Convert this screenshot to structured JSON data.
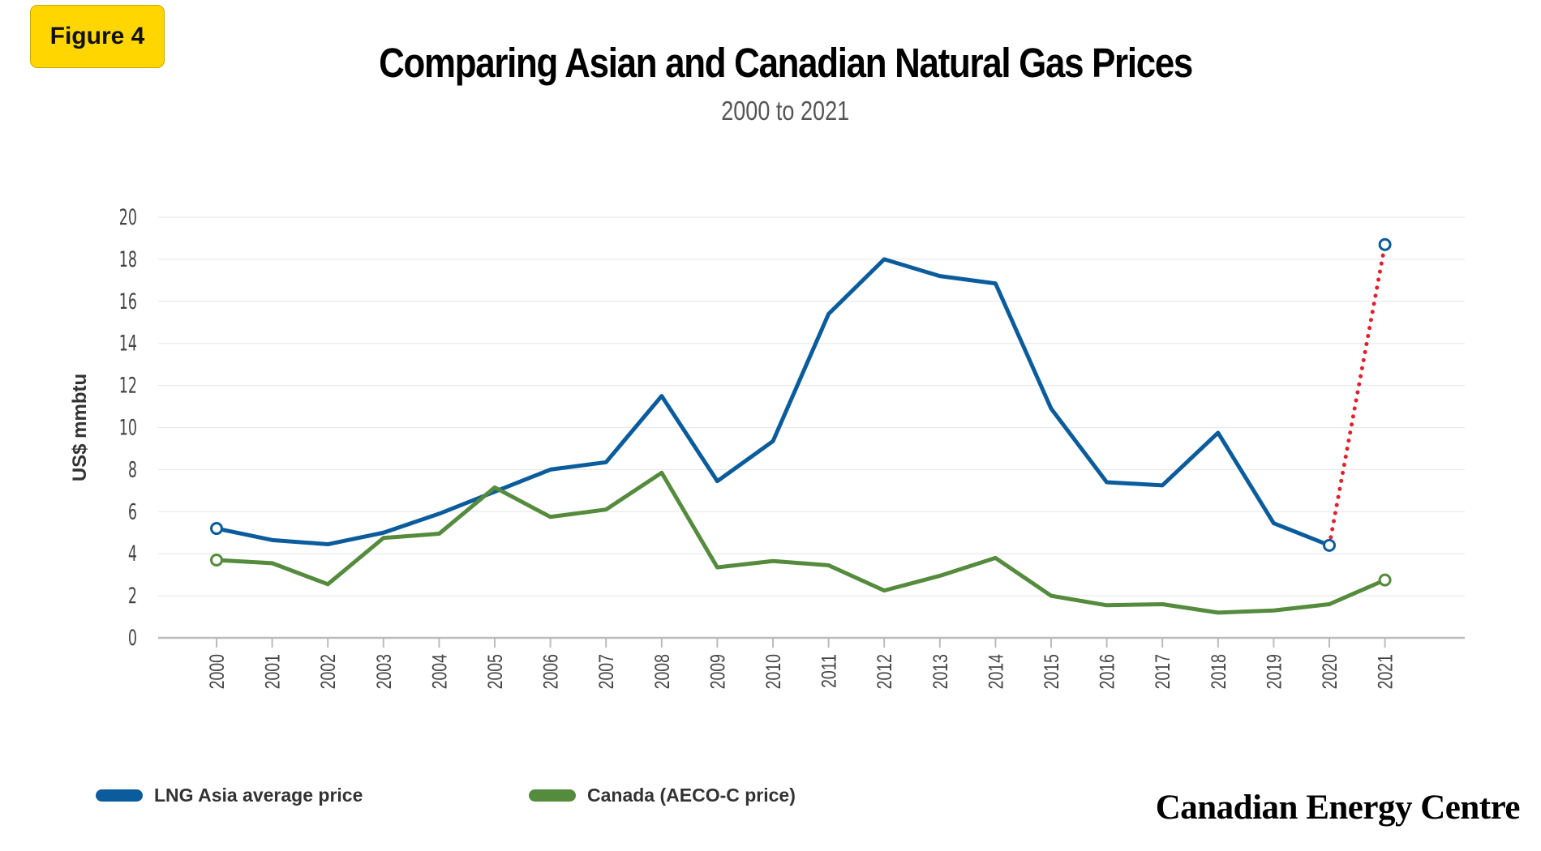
{
  "badge": "Figure 4",
  "chart_data": {
    "type": "line",
    "title": "Comparing Asian and Canadian Natural Gas Prices",
    "subtitle": "2000 to 2021",
    "ylabel": "US$ mmbtu",
    "xlabel": "",
    "ylim": [
      0,
      20
    ],
    "yticks": [
      "0",
      "2",
      "4",
      "6",
      "8",
      "10",
      "12",
      "14",
      "16",
      "18",
      "20"
    ],
    "categories": [
      "2000",
      "2001",
      "2002",
      "2003",
      "2004",
      "2005",
      "2006",
      "2007",
      "2008",
      "2009",
      "2010",
      "2011",
      "2012",
      "2013",
      "2014",
      "2015",
      "2016",
      "2017",
      "2018",
      "2019",
      "2020",
      "2021"
    ],
    "grid": true,
    "legend_position": "bottom-left",
    "series": [
      {
        "name": "LNG Asia average price",
        "color": "#0b5c9c",
        "values": [
          5.2,
          4.65,
          4.45,
          5.0,
          5.9,
          6.95,
          8.0,
          8.35,
          11.5,
          7.45,
          9.35,
          15.4,
          18.0,
          17.2,
          16.85,
          10.9,
          7.4,
          7.25,
          9.75,
          5.45,
          4.4,
          18.7
        ],
        "projected_from_index": 20,
        "projection_color": "#e0202a"
      },
      {
        "name": "Canada (AECO-C price)",
        "color": "#548b3c",
        "values": [
          3.7,
          3.55,
          2.55,
          4.75,
          4.95,
          7.15,
          5.75,
          6.1,
          7.85,
          3.35,
          3.65,
          3.45,
          2.25,
          2.95,
          3.8,
          2.0,
          1.55,
          1.6,
          1.2,
          1.3,
          1.6,
          2.75
        ]
      }
    ]
  },
  "brand": "Canadian Energy Centre"
}
